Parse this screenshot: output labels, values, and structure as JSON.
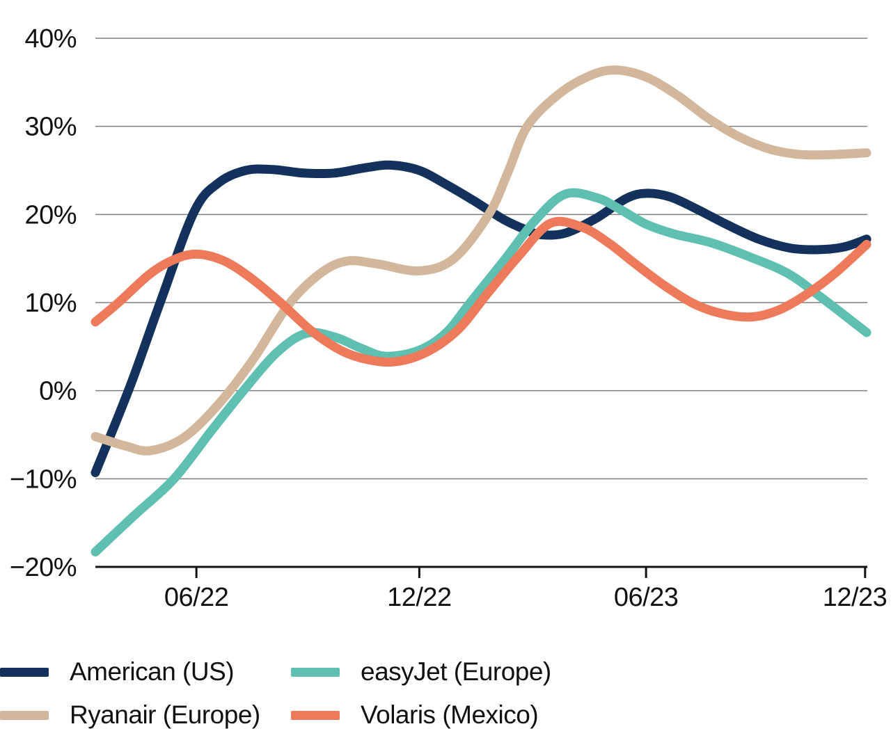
{
  "chart_data": {
    "type": "line",
    "title": "",
    "xlabel": "",
    "ylabel": "",
    "grid": true,
    "legend_position": "bottom",
    "y_axis": {
      "min": -20,
      "max": 40,
      "step": 10,
      "tick_values": [
        40,
        30,
        20,
        10,
        0,
        -10,
        -20
      ],
      "tick_labels": [
        "40%",
        "30%",
        "20%",
        "10%",
        "0%",
        "−10%",
        "−20%"
      ]
    },
    "x_axis": {
      "ticks": [
        {
          "label": "06/22",
          "f": 0.131
        },
        {
          "label": "12/22",
          "f": 0.42
        },
        {
          "label": "06/23",
          "f": 0.714
        },
        {
          "label": "12/23",
          "f": 0.998
        }
      ]
    },
    "series": [
      {
        "name": "American (US)",
        "color": "#12325B",
        "points": [
          [
            0,
            -9.3
          ],
          [
            0.045,
            0.5
          ],
          [
            0.084,
            10
          ],
          [
            0.128,
            20.3
          ],
          [
            0.16,
            23.6
          ],
          [
            0.195,
            25
          ],
          [
            0.23,
            25.1
          ],
          [
            0.27,
            24.7
          ],
          [
            0.31,
            24.7
          ],
          [
            0.35,
            25.3
          ],
          [
            0.383,
            25.6
          ],
          [
            0.42,
            25
          ],
          [
            0.455,
            23.4
          ],
          [
            0.49,
            21.6
          ],
          [
            0.53,
            19.4
          ],
          [
            0.56,
            18.2
          ],
          [
            0.578,
            17.7
          ],
          [
            0.61,
            17.9
          ],
          [
            0.65,
            19.6
          ],
          [
            0.688,
            21.8
          ],
          [
            0.714,
            22.4
          ],
          [
            0.745,
            22
          ],
          [
            0.78,
            20.6
          ],
          [
            0.82,
            18.8
          ],
          [
            0.86,
            17.2
          ],
          [
            0.9,
            16.2
          ],
          [
            0.935,
            16
          ],
          [
            0.97,
            16.3
          ],
          [
            1,
            17.2
          ]
        ]
      },
      {
        "name": "Ryanair (Europe)",
        "color": "#D2B79A",
        "points": [
          [
            0,
            -5.2
          ],
          [
            0.04,
            -6.3
          ],
          [
            0.072,
            -6.8
          ],
          [
            0.115,
            -5.3
          ],
          [
            0.16,
            -1.5
          ],
          [
            0.205,
            3.6
          ],
          [
            0.25,
            9.7
          ],
          [
            0.29,
            13.2
          ],
          [
            0.325,
            14.7
          ],
          [
            0.365,
            14.4
          ],
          [
            0.42,
            13.6
          ],
          [
            0.465,
            15
          ],
          [
            0.51,
            20
          ],
          [
            0.535,
            24.8
          ],
          [
            0.56,
            30
          ],
          [
            0.6,
            33.6
          ],
          [
            0.64,
            35.7
          ],
          [
            0.674,
            36.4
          ],
          [
            0.714,
            35.6
          ],
          [
            0.755,
            33.5
          ],
          [
            0.795,
            30.9
          ],
          [
            0.835,
            28.8
          ],
          [
            0.875,
            27.4
          ],
          [
            0.915,
            26.8
          ],
          [
            0.955,
            26.8
          ],
          [
            1,
            27
          ]
        ]
      },
      {
        "name": "easyJet (Europe)",
        "color": "#5FBFB1",
        "points": [
          [
            0,
            -18.3
          ],
          [
            0.05,
            -14.2
          ],
          [
            0.102,
            -10
          ],
          [
            0.15,
            -4.6
          ],
          [
            0.192,
            0
          ],
          [
            0.235,
            4.3
          ],
          [
            0.273,
            6.5
          ],
          [
            0.31,
            6.1
          ],
          [
            0.345,
            4.8
          ],
          [
            0.377,
            3.9
          ],
          [
            0.42,
            4.6
          ],
          [
            0.455,
            6.6
          ],
          [
            0.486,
            10
          ],
          [
            0.53,
            14.8
          ],
          [
            0.57,
            19.3
          ],
          [
            0.609,
            22.3
          ],
          [
            0.65,
            21.9
          ],
          [
            0.68,
            20.6
          ],
          [
            0.714,
            18.9
          ],
          [
            0.75,
            17.8
          ],
          [
            0.798,
            16.8
          ],
          [
            0.848,
            15.2
          ],
          [
            0.898,
            13.3
          ],
          [
            0.941,
            10.6
          ],
          [
            1,
            6.6
          ]
        ]
      },
      {
        "name": "Volaris (Mexico)",
        "color": "#EE7A5C",
        "points": [
          [
            0,
            7.8
          ],
          [
            0.03,
            10
          ],
          [
            0.07,
            13.2
          ],
          [
            0.1,
            14.8
          ],
          [
            0.13,
            15.5
          ],
          [
            0.165,
            14.8
          ],
          [
            0.2,
            12.9
          ],
          [
            0.24,
            10
          ],
          [
            0.28,
            6.8
          ],
          [
            0.32,
            4.5
          ],
          [
            0.355,
            3.5
          ],
          [
            0.39,
            3.3
          ],
          [
            0.43,
            4.4
          ],
          [
            0.47,
            6.9
          ],
          [
            0.51,
            11.2
          ],
          [
            0.55,
            15.4
          ],
          [
            0.59,
            19
          ],
          [
            0.63,
            18.6
          ],
          [
            0.665,
            16.8
          ],
          [
            0.7,
            14.4
          ],
          [
            0.74,
            11.8
          ],
          [
            0.78,
            9.7
          ],
          [
            0.82,
            8.6
          ],
          [
            0.855,
            8.4
          ],
          [
            0.89,
            9.3
          ],
          [
            0.925,
            11.1
          ],
          [
            0.96,
            13.4
          ],
          [
            1,
            16.6
          ]
        ]
      }
    ]
  },
  "styles": {
    "grid_color": "#7F7F7F",
    "axis_color": "#111111",
    "text_color": "#111111",
    "background": "#ffffff"
  }
}
